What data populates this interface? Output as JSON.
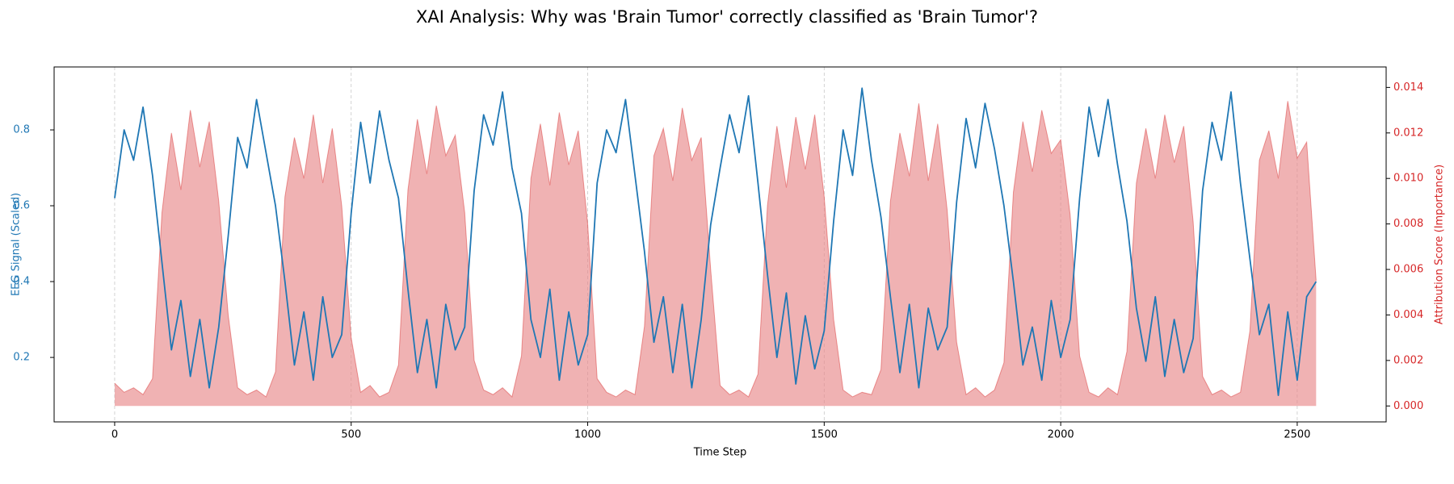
{
  "chart_data": {
    "type": "line",
    "title": "XAI Analysis: Why was 'Brain Tumor' correctly classified as 'Brain Tumor'?",
    "xlabel": "Time Step",
    "ylabel": "EEG Signal (Scaled)",
    "y2label": "Attribution Score (Importance)",
    "x": [
      0,
      20,
      40,
      60,
      80,
      100,
      120,
      140,
      160,
      180,
      200,
      220,
      240,
      260,
      280,
      300,
      320,
      340,
      360,
      380,
      400,
      420,
      440,
      460,
      480,
      500,
      520,
      540,
      560,
      580,
      600,
      620,
      640,
      660,
      680,
      700,
      720,
      740,
      760,
      780,
      800,
      820,
      840,
      860,
      880,
      900,
      920,
      940,
      960,
      980,
      1000,
      1020,
      1040,
      1060,
      1080,
      1100,
      1120,
      1140,
      1160,
      1180,
      1200,
      1220,
      1240,
      1260,
      1280,
      1300,
      1320,
      1340,
      1360,
      1380,
      1400,
      1420,
      1440,
      1460,
      1480,
      1500,
      1520,
      1540,
      1560,
      1580,
      1600,
      1620,
      1640,
      1660,
      1680,
      1700,
      1720,
      1740,
      1760,
      1780,
      1800,
      1820,
      1840,
      1860,
      1880,
      1900,
      1920,
      1940,
      1960,
      1980,
      2000,
      2020,
      2040,
      2060,
      2080,
      2100,
      2120,
      2140,
      2160,
      2180,
      2200,
      2220,
      2240,
      2260,
      2280,
      2300,
      2320,
      2340,
      2360,
      2380,
      2400,
      2420,
      2440,
      2460,
      2480,
      2500,
      2520,
      2540
    ],
    "series": [
      {
        "name": "EEG Signal (Scaled)",
        "color": "#1f77b4",
        "axis": "y",
        "values": [
          0.62,
          0.8,
          0.72,
          0.86,
          0.68,
          0.45,
          0.22,
          0.35,
          0.15,
          0.3,
          0.12,
          0.28,
          0.52,
          0.78,
          0.7,
          0.88,
          0.74,
          0.6,
          0.4,
          0.18,
          0.32,
          0.14,
          0.36,
          0.2,
          0.26,
          0.58,
          0.82,
          0.66,
          0.85,
          0.72,
          0.62,
          0.38,
          0.16,
          0.3,
          0.12,
          0.34,
          0.22,
          0.28,
          0.64,
          0.84,
          0.76,
          0.9,
          0.7,
          0.58,
          0.3,
          0.2,
          0.38,
          0.14,
          0.32,
          0.18,
          0.26,
          0.66,
          0.8,
          0.74,
          0.88,
          0.68,
          0.48,
          0.24,
          0.36,
          0.16,
          0.34,
          0.12,
          0.3,
          0.55,
          0.7,
          0.84,
          0.74,
          0.89,
          0.66,
          0.42,
          0.2,
          0.37,
          0.13,
          0.31,
          0.17,
          0.27,
          0.56,
          0.8,
          0.68,
          0.91,
          0.72,
          0.57,
          0.36,
          0.16,
          0.34,
          0.12,
          0.33,
          0.22,
          0.28,
          0.61,
          0.83,
          0.7,
          0.87,
          0.75,
          0.6,
          0.4,
          0.18,
          0.28,
          0.14,
          0.35,
          0.2,
          0.3,
          0.62,
          0.86,
          0.73,
          0.88,
          0.71,
          0.56,
          0.33,
          0.19,
          0.36,
          0.15,
          0.3,
          0.16,
          0.25,
          0.64,
          0.82,
          0.72,
          0.9,
          0.66,
          0.46,
          0.26,
          0.34,
          0.1,
          0.32,
          0.14,
          0.36,
          0.4
        ]
      },
      {
        "name": "Attribution Score (Importance)",
        "color": "#d62728",
        "fill": "#e8898a",
        "axis": "y2",
        "values": [
          0.001,
          0.0006,
          0.0008,
          0.0005,
          0.0012,
          0.0085,
          0.012,
          0.0095,
          0.013,
          0.0105,
          0.0125,
          0.009,
          0.004,
          0.0008,
          0.0005,
          0.0007,
          0.0004,
          0.0015,
          0.0092,
          0.0118,
          0.01,
          0.0128,
          0.0098,
          0.0122,
          0.0088,
          0.003,
          0.0006,
          0.0009,
          0.0004,
          0.0006,
          0.0018,
          0.0095,
          0.0126,
          0.0102,
          0.0132,
          0.011,
          0.0119,
          0.0085,
          0.002,
          0.0007,
          0.0005,
          0.0008,
          0.0004,
          0.0022,
          0.01,
          0.0124,
          0.0097,
          0.0129,
          0.0106,
          0.0121,
          0.008,
          0.0012,
          0.0006,
          0.0004,
          0.0007,
          0.0005,
          0.0035,
          0.011,
          0.0122,
          0.0099,
          0.0131,
          0.0108,
          0.0118,
          0.006,
          0.0009,
          0.0005,
          0.0007,
          0.0004,
          0.0014,
          0.0088,
          0.0123,
          0.0096,
          0.0127,
          0.0104,
          0.0128,
          0.0092,
          0.0038,
          0.0007,
          0.0004,
          0.0006,
          0.0005,
          0.0016,
          0.009,
          0.012,
          0.0101,
          0.0133,
          0.0099,
          0.0124,
          0.0086,
          0.0028,
          0.0005,
          0.0008,
          0.0004,
          0.0007,
          0.0019,
          0.0094,
          0.0125,
          0.0103,
          0.013,
          0.0111,
          0.0117,
          0.0084,
          0.0022,
          0.0006,
          0.0004,
          0.0008,
          0.0005,
          0.0024,
          0.0098,
          0.0122,
          0.01,
          0.0128,
          0.0107,
          0.0123,
          0.0081,
          0.0013,
          0.0005,
          0.0007,
          0.0004,
          0.0006,
          0.0033,
          0.0108,
          0.0121,
          0.01,
          0.0134,
          0.0109,
          0.0116,
          0.0055
        ]
      }
    ],
    "xlim": [
      -128,
      2688
    ],
    "xticks": [
      0,
      500,
      1000,
      1500,
      2000,
      2500
    ],
    "ylim": [
      0.03,
      0.966
    ],
    "yticks": [
      0.2,
      0.4,
      0.6,
      0.8
    ],
    "y2lim": [
      -0.0007,
      0.0149
    ],
    "y2ticks": [
      {
        "value": 0,
        "label": "0.000"
      },
      {
        "value": 0.002,
        "label": "0.002"
      },
      {
        "value": 0.004,
        "label": "0.004"
      },
      {
        "value": 0.006,
        "label": "0.006"
      },
      {
        "value": 0.008,
        "label": "0.008"
      },
      {
        "value": 0.01,
        "label": "0.010"
      },
      {
        "value": 0.012,
        "label": "0.012"
      },
      {
        "value": 0.014,
        "label": "0.014"
      }
    ],
    "grid": "x"
  }
}
